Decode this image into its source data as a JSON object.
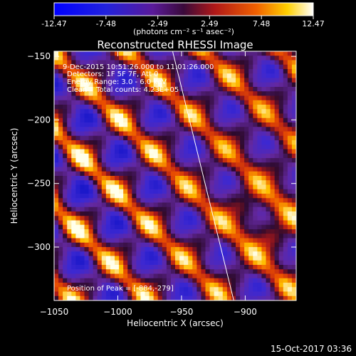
{
  "colorbar": {
    "ticks": [
      "-12.47",
      "-7.48",
      "-2.49",
      "2.49",
      "7.48",
      "12.47"
    ],
    "tick_values": [
      -12.47,
      -7.48,
      -2.49,
      2.49,
      7.48,
      12.47
    ],
    "range": [
      -12.47,
      12.47
    ],
    "units": "(photons cm⁻² s⁻¹ asec⁻²)"
  },
  "chart_data": {
    "type": "heatmap",
    "title": "Reconstructed RHESSI Image",
    "xlabel": "Heliocentric X (arcsec)",
    "ylabel": "Heliocentric Y (arcsec)",
    "xlim": [
      -1050,
      -860
    ],
    "ylim": [
      -342,
      -146
    ],
    "x_ticks": [
      {
        "value": -1050,
        "label": "−1050"
      },
      {
        "value": -1000,
        "label": "−1000"
      },
      {
        "value": -950,
        "label": "−950"
      },
      {
        "value": -900,
        "label": "−900"
      }
    ],
    "y_ticks": [
      {
        "value": -150,
        "label": "−150"
      },
      {
        "value": -200,
        "label": "−200"
      },
      {
        "value": -250,
        "label": "−250"
      },
      {
        "value": -300,
        "label": "−300"
      }
    ],
    "annotations": [
      "9-Dec-2015 10:51:26.000 to 11:01:26.000",
      "Detectors: 1F 5F 7F, Att 0",
      "Energy Range: 3.0 - 6.0 keV",
      "Clean    Total counts: 4.23E+05",
      "Position of Peak = [-884,-279]"
    ],
    "peak": {
      "x": -884,
      "y": -279
    },
    "limb_line": [
      {
        "x": -957,
        "y": -146
      },
      {
        "x": -909,
        "y": -342
      }
    ],
    "value_range": [
      -12.47,
      12.47
    ],
    "colormap": "blue-purple-red-yellow-white"
  },
  "footer": {
    "timestamp": "15-Oct-2017 03:36"
  }
}
